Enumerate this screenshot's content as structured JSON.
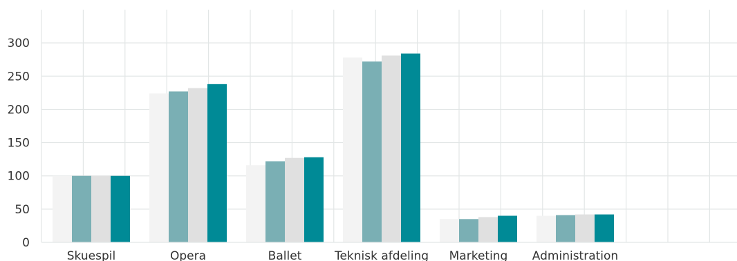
{
  "chart_data": {
    "type": "bar",
    "title": "",
    "xlabel": "",
    "ylabel": "",
    "ylim": [
      0,
      350
    ],
    "yticks": [
      0,
      50,
      100,
      150,
      200,
      250,
      300
    ],
    "grid": true,
    "categories": [
      "Skuespil",
      "Opera",
      "Ballet",
      "Teknisk afdeling",
      "Marketing",
      "Administration"
    ],
    "series": [
      {
        "color": "#f3f3f3",
        "values": [
          100,
          224,
          116,
          278,
          35,
          40
        ]
      },
      {
        "color": "#7aafb4",
        "values": [
          100,
          227,
          122,
          272,
          35,
          41
        ]
      },
      {
        "color": "#e0e0e0",
        "values": [
          100,
          232,
          127,
          281,
          38,
          42
        ]
      },
      {
        "color": "#008a96",
        "values": [
          100,
          238,
          128,
          284,
          40,
          42
        ]
      }
    ]
  }
}
